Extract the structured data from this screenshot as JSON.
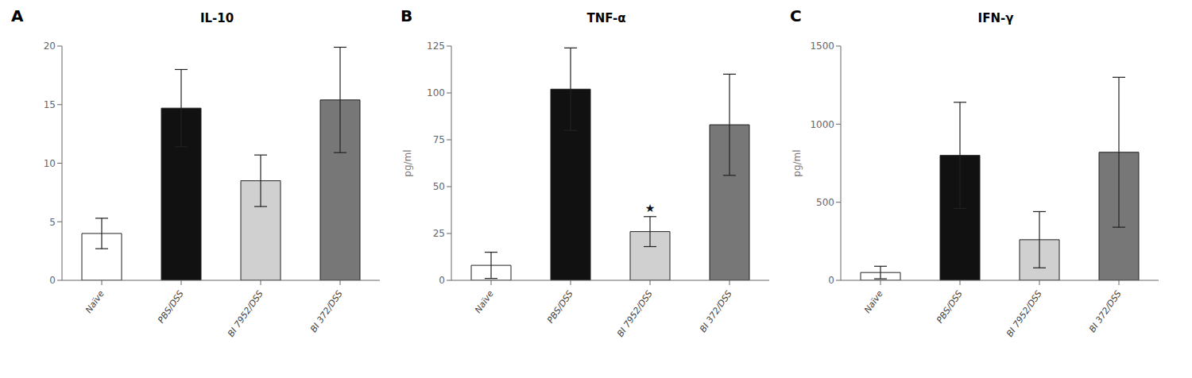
{
  "chart_data": [
    {
      "type": "bar",
      "title": "IL-10",
      "annotations": [
        {
          "text": "A"
        }
      ],
      "categories": [
        "Naïve",
        "PBS/DSS",
        "BI 7952/DSS",
        "BI 372/DSS"
      ],
      "values": [
        4.0,
        14.7,
        8.5,
        15.4
      ],
      "errors": [
        1.3,
        3.3,
        2.2,
        4.5
      ],
      "colors": [
        "#ffffff",
        "#111111",
        "#d0d0d0",
        "#777777"
      ],
      "ylim": [
        0,
        20
      ],
      "yticks": [
        0,
        5,
        10,
        15,
        20
      ],
      "grid": false
    },
    {
      "type": "bar",
      "title": "TNF-α",
      "y_label": "pg/ml",
      "annotations": [
        {
          "text": "B"
        },
        {
          "text": "★",
          "x": "BI 7952/DSS"
        }
      ],
      "categories": [
        "Naïve",
        "PBS/DSS",
        "BI 7952/DSS",
        "BI 372/DSS"
      ],
      "values": [
        8.0,
        102.0,
        26.0,
        83.0
      ],
      "errors": [
        7.0,
        22.0,
        8.0,
        27.0
      ],
      "colors": [
        "#ffffff",
        "#111111",
        "#d0d0d0",
        "#777777"
      ],
      "ylim": [
        0,
        125
      ],
      "yticks": [
        0,
        25,
        50,
        75,
        100,
        125
      ],
      "grid": false
    },
    {
      "type": "bar",
      "title": "IFN-γ",
      "y_label": "pg/ml",
      "annotations": [
        {
          "text": "C"
        }
      ],
      "categories": [
        "Naïve",
        "PBS/DSS",
        "BI 7952/DSS",
        "BI 372/DSS"
      ],
      "values": [
        50.0,
        800.0,
        260.0,
        820.0
      ],
      "errors": [
        40.0,
        340.0,
        180.0,
        480.0
      ],
      "colors": [
        "#ffffff",
        "#111111",
        "#d0d0d0",
        "#777777"
      ],
      "ylim": [
        0,
        1500
      ],
      "yticks": [
        0,
        500,
        1000,
        1500
      ],
      "grid": false
    }
  ]
}
